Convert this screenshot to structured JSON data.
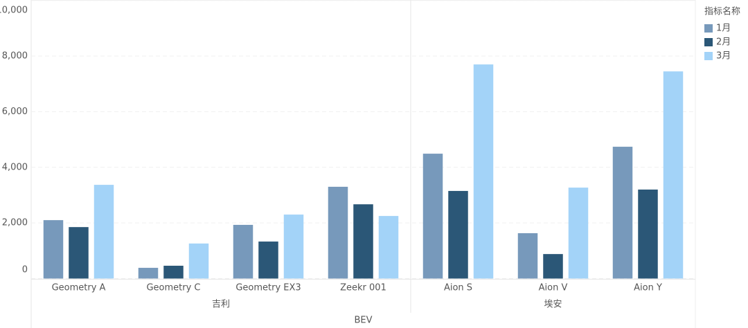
{
  "chart_data": {
    "type": "bar",
    "groups_title": "BEV",
    "groups": [
      {
        "name": "吉利",
        "categories": [
          "Geometry A",
          "Geometry C",
          "Geometry EX3",
          "Zeekr 001"
        ]
      },
      {
        "name": "埃安",
        "categories": [
          "Aion S",
          "Aion V",
          "Aion Y"
        ]
      }
    ],
    "legend_title": "指标名称",
    "series": [
      {
        "name": "1月",
        "color": "#7799bb",
        "values": [
          2100,
          385,
          1930,
          3300,
          4490,
          1630,
          4740
        ]
      },
      {
        "name": "2月",
        "color": "#2b5777",
        "values": [
          1850,
          460,
          1330,
          2670,
          3150,
          880,
          3200
        ]
      },
      {
        "name": "3月",
        "color": "#a3d3f8",
        "values": [
          3370,
          1260,
          2300,
          2250,
          7700,
          3270,
          7450
        ]
      }
    ],
    "ylim": [
      0,
      10000
    ],
    "yticks": [
      0,
      {
        "value": 2000,
        "label": "2,000"
      },
      {
        "value": 4000,
        "label": "4,000"
      },
      {
        "value": 6000,
        "label": "6,000"
      },
      {
        "value": 8000,
        "label": "8,000"
      },
      {
        "value": 10000,
        "label": "10,000"
      }
    ],
    "grid": true,
    "legend": "right"
  }
}
